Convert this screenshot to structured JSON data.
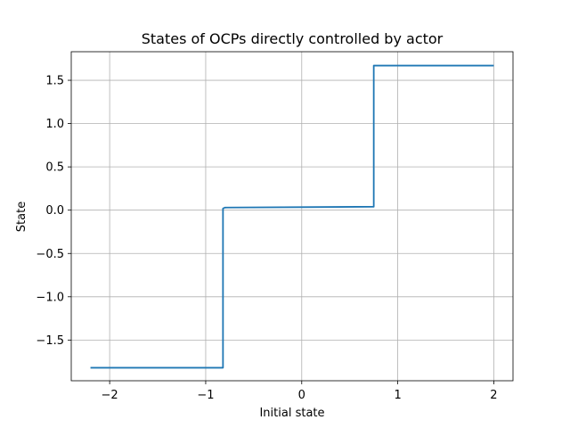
{
  "chart_data": {
    "type": "line",
    "title": "States of OCPs directly controlled by actor",
    "xlabel": "Initial state",
    "ylabel": "State",
    "xlim": [
      -2.4,
      2.2
    ],
    "ylim": [
      -1.97,
      1.83
    ],
    "xticks": [
      -2,
      -1,
      0,
      1,
      2
    ],
    "xtick_labels": [
      "−2",
      "−1",
      "0",
      "1",
      "2"
    ],
    "yticks": [
      -1.5,
      -1.0,
      -0.5,
      0.0,
      0.5,
      1.0,
      1.5
    ],
    "ytick_labels": [
      "−1.5",
      "−1.0",
      "−0.5",
      "0.0",
      "0.5",
      "1.0",
      "1.5"
    ],
    "grid": true,
    "series": [
      {
        "color": "#1f77b4",
        "x": [
          -2.2,
          -0.82,
          -0.82,
          -0.8,
          0.0,
          0.75,
          0.75,
          2.0
        ],
        "y": [
          -1.82,
          -1.82,
          0.02,
          0.03,
          0.035,
          0.04,
          1.67,
          1.67
        ]
      }
    ]
  }
}
